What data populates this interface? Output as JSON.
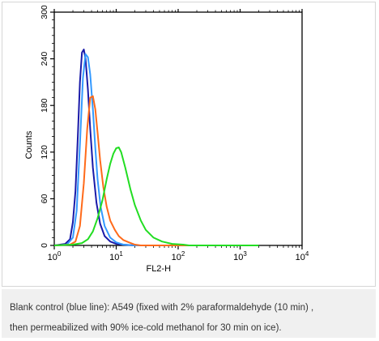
{
  "chart_data": {
    "type": "line",
    "title": "",
    "xlabel": "FL2-H",
    "ylabel": "Counts",
    "x_scale": "log",
    "xlim": [
      1,
      10000
    ],
    "ylim": [
      0,
      300
    ],
    "x_ticks": [
      {
        "base": "10",
        "exp": "0"
      },
      {
        "base": "10",
        "exp": "1"
      },
      {
        "base": "10",
        "exp": "2"
      },
      {
        "base": "10",
        "exp": "3"
      },
      {
        "base": "10",
        "exp": "4"
      }
    ],
    "y_ticks": [
      "0",
      "60",
      "120",
      "180",
      "240",
      "300"
    ],
    "grid": false,
    "legend": false,
    "series": [
      {
        "color": "#1a1aa8",
        "x": [
          1,
          1.5,
          1.8,
          2.0,
          2.2,
          2.4,
          2.6,
          2.8,
          3.0,
          3.2,
          3.5,
          3.8,
          4.2,
          4.8,
          5.5,
          6.5,
          8,
          10,
          13,
          20,
          1000
        ],
        "y": [
          0,
          2,
          8,
          30,
          70,
          140,
          210,
          248,
          252,
          240,
          200,
          150,
          100,
          55,
          28,
          12,
          5,
          2,
          1,
          0,
          0
        ]
      },
      {
        "color": "#3399ff",
        "x": [
          1,
          1.6,
          2.0,
          2.3,
          2.6,
          2.9,
          3.2,
          3.5,
          3.8,
          4.2,
          4.6,
          5.0,
          5.6,
          6.5,
          8,
          10,
          13,
          20,
          1000
        ],
        "y": [
          0,
          1,
          10,
          45,
          130,
          215,
          246,
          242,
          220,
          175,
          125,
          85,
          50,
          25,
          10,
          4,
          1,
          0,
          0
        ]
      },
      {
        "color": "#ff6a1a",
        "x": [
          1,
          1.8,
          2.2,
          2.6,
          3.0,
          3.4,
          3.8,
          4.2,
          4.6,
          5.0,
          5.5,
          6.2,
          7,
          8,
          9.5,
          11,
          13,
          16,
          20,
          25,
          1000
        ],
        "y": [
          0,
          1,
          5,
          25,
          80,
          150,
          190,
          192,
          175,
          145,
          110,
          75,
          50,
          32,
          20,
          12,
          7,
          4,
          1,
          0,
          0
        ]
      },
      {
        "color": "#22dd22",
        "x": [
          1,
          2.0,
          2.8,
          3.5,
          4.2,
          5.0,
          6.0,
          7.0,
          8.0,
          9.0,
          10,
          11,
          12,
          14,
          17,
          20,
          25,
          30,
          40,
          55,
          80,
          120,
          150,
          2000
        ],
        "y": [
          0,
          1,
          3,
          8,
          18,
          35,
          58,
          85,
          105,
          118,
          125,
          126,
          120,
          100,
          72,
          52,
          32,
          20,
          10,
          5,
          2,
          1,
          0,
          0
        ]
      }
    ]
  },
  "caption": {
    "line1": "Blank control (blue line): A549 (fixed with 2% paraformaldehyde (10 min) ,",
    "line2": "then permeabilized with 90% ice-cold methanol for 30 min on ice)."
  }
}
